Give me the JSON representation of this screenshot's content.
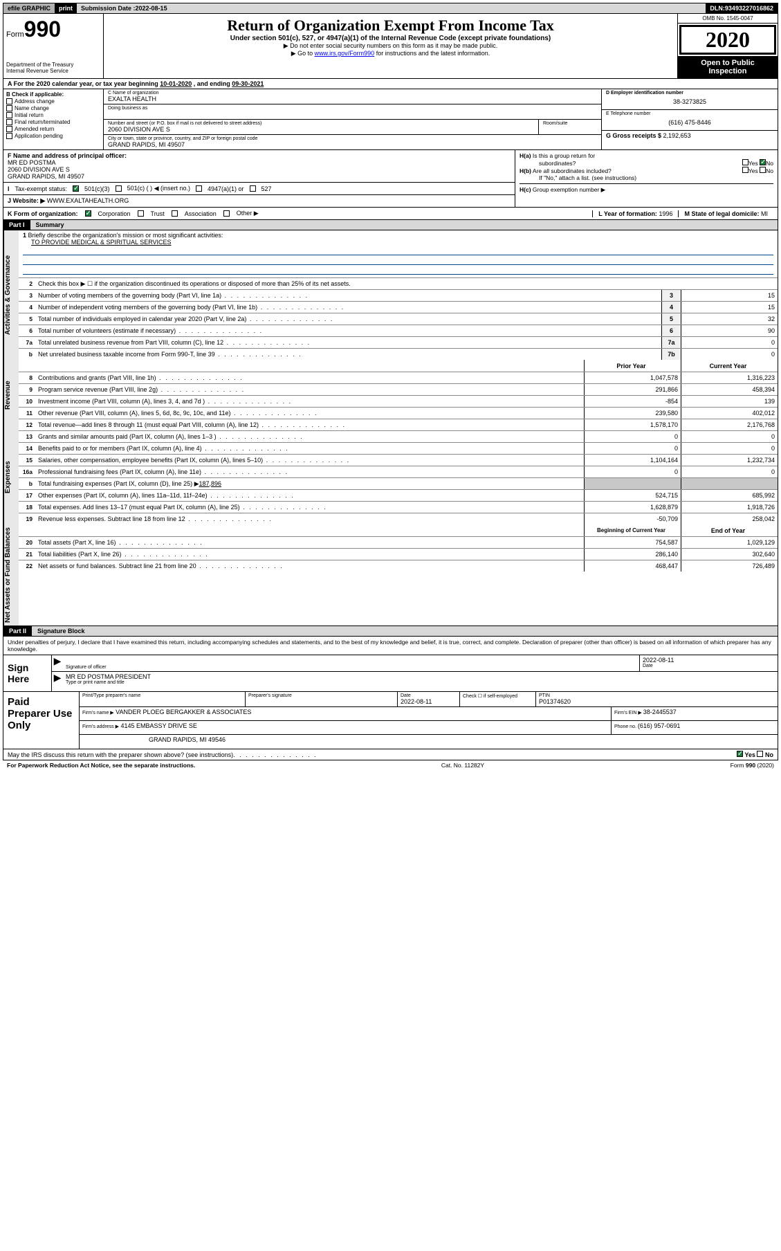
{
  "topbar": {
    "efile": "efile GRAPHIC",
    "print": "print",
    "submission_label": "Submission Date : ",
    "submission_date": "2022-08-15",
    "dln_label": "DLN: ",
    "dln": "93493227016862"
  },
  "header": {
    "form_label": "Form",
    "form_no": "990",
    "dept1": "Department of the Treasury",
    "dept2": "Internal Revenue Service",
    "title": "Return of Organization Exempt From Income Tax",
    "sub": "Under section 501(c), 527, or 4947(a)(1) of the Internal Revenue Code (except private foundations)",
    "note1": "▶ Do not enter social security numbers on this form as it may be made public.",
    "note2_pre": "▶ Go to ",
    "note2_link": "www.irs.gov/Form990",
    "note2_post": " for instructions and the latest information.",
    "omb": "OMB No. 1545-0047",
    "year": "2020",
    "open1": "Open to Public",
    "open2": "Inspection"
  },
  "rowA": {
    "text_pre": "A For the 2020 calendar year, or tax year beginning ",
    "begin": "10-01-2020",
    "mid": "   , and ending ",
    "end": "09-30-2021"
  },
  "colB": {
    "label": "B Check if applicable:",
    "items": [
      "Address change",
      "Name change",
      "Initial return",
      "Final return/terminated",
      "Amended return",
      "Application pending"
    ]
  },
  "colC": {
    "name_lbl": "C Name of organization",
    "name": "EXALTA HEALTH",
    "dba_lbl": "Doing business as",
    "street_lbl": "Number and street (or P.O. box if mail is not delivered to street address)",
    "street": "2060 DIVISION AVE S",
    "room_lbl": "Room/suite",
    "city_lbl": "City or town, state or province, country, and ZIP or foreign postal code",
    "city": "GRAND RAPIDS, MI  49507"
  },
  "colDE": {
    "d_lbl": "D Employer identification number",
    "ein": "38-3273825",
    "e_lbl": "E Telephone number",
    "phone": "(616) 475-8446",
    "g_lbl": "G Gross receipts $ ",
    "gross": "2,192,653"
  },
  "blockF": {
    "f_lbl": "F Name and address of principal officer:",
    "f_name": "MR ED POSTMA",
    "f_addr1": "2060 DIVISION AVE S",
    "f_addr2": "GRAND RAPIDS, MI  49507",
    "i_lbl": "Tax-exempt status:",
    "i_501c3": "501(c)(3)",
    "i_501c": "501(c) (   ) ◀ (insert no.)",
    "i_4947": "4947(a)(1) or",
    "i_527": "527",
    "j_lbl": "Website: ▶",
    "website": "WWW.EXALTAHEALTH.ORG"
  },
  "blockH": {
    "ha_lbl": "H(a)",
    "ha_q1": "Is this a group return for",
    "ha_q2": "subordinates?",
    "hb_lbl": "H(b)",
    "hb_q": "Are all subordinates included?",
    "hb_note": "If \"No,\" attach a list. (see instructions)",
    "hc_lbl": "H(c)",
    "hc_q": "Group exemption number ▶",
    "yes": "Yes",
    "no": "No"
  },
  "rowK": {
    "k_lbl": "K Form of organization:",
    "corp": "Corporation",
    "trust": "Trust",
    "assoc": "Association",
    "other": "Other ▶",
    "l_lbl": "L Year of formation: ",
    "l_val": "1996",
    "m_lbl": "M State of legal domicile: ",
    "m_val": "MI"
  },
  "part1": {
    "part": "Part I",
    "title": "Summary",
    "vtab_ag": "Activities & Governance",
    "vtab_rev": "Revenue",
    "vtab_exp": "Expenses",
    "vtab_net": "Net Assets or Fund Balances",
    "l1_lbl": "Briefly describe the organization's mission or most significant activities:",
    "l1_val": "TO PROVIDE MEDICAL & SPIRITUAL SERVICES",
    "l2": "Check this box ▶ ☐  if the organization discontinued its operations or disposed of more than 25% of its net assets.",
    "prior_hdr": "Prior Year",
    "current_hdr": "Current Year",
    "boy_hdr": "Beginning of Current Year",
    "eoy_hdr": "End of Year",
    "lines_ag": [
      {
        "n": "3",
        "t": "Number of voting members of the governing body (Part VI, line 1a)",
        "box": "3",
        "v": "15"
      },
      {
        "n": "4",
        "t": "Number of independent voting members of the governing body (Part VI, line 1b)",
        "box": "4",
        "v": "15"
      },
      {
        "n": "5",
        "t": "Total number of individuals employed in calendar year 2020 (Part V, line 2a)",
        "box": "5",
        "v": "32"
      },
      {
        "n": "6",
        "t": "Total number of volunteers (estimate if necessary)",
        "box": "6",
        "v": "90"
      },
      {
        "n": "7a",
        "t": "Total unrelated business revenue from Part VIII, column (C), line 12",
        "box": "7a",
        "v": "0"
      },
      {
        "n": "b",
        "t": "Net unrelated business taxable income from Form 990-T, line 39",
        "box": "7b",
        "v": "0"
      }
    ],
    "lines_rev": [
      {
        "n": "8",
        "t": "Contributions and grants (Part VIII, line 1h)",
        "p": "1,047,578",
        "c": "1,316,223"
      },
      {
        "n": "9",
        "t": "Program service revenue (Part VIII, line 2g)",
        "p": "291,866",
        "c": "458,394"
      },
      {
        "n": "10",
        "t": "Investment income (Part VIII, column (A), lines 3, 4, and 7d )",
        "p": "-854",
        "c": "139"
      },
      {
        "n": "11",
        "t": "Other revenue (Part VIII, column (A), lines 5, 6d, 8c, 9c, 10c, and 11e)",
        "p": "239,580",
        "c": "402,012"
      },
      {
        "n": "12",
        "t": "Total revenue—add lines 8 through 11 (must equal Part VIII, column (A), line 12)",
        "p": "1,578,170",
        "c": "2,176,768"
      }
    ],
    "lines_exp": [
      {
        "n": "13",
        "t": "Grants and similar amounts paid (Part IX, column (A), lines 1–3 )",
        "p": "0",
        "c": "0"
      },
      {
        "n": "14",
        "t": "Benefits paid to or for members (Part IX, column (A), line 4)",
        "p": "0",
        "c": "0"
      },
      {
        "n": "15",
        "t": "Salaries, other compensation, employee benefits (Part IX, column (A), lines 5–10)",
        "p": "1,104,164",
        "c": "1,232,734"
      },
      {
        "n": "16a",
        "t": "Professional fundraising fees (Part IX, column (A), line 11e)",
        "p": "0",
        "c": "0"
      }
    ],
    "line16b_pre": "Total fundraising expenses (Part IX, column (D), line 25) ▶",
    "line16b_val": "187,896",
    "lines_exp2": [
      {
        "n": "17",
        "t": "Other expenses (Part IX, column (A), lines 11a–11d, 11f–24e)",
        "p": "524,715",
        "c": "685,992"
      },
      {
        "n": "18",
        "t": "Total expenses. Add lines 13–17 (must equal Part IX, column (A), line 25)",
        "p": "1,628,879",
        "c": "1,918,726"
      },
      {
        "n": "19",
        "t": "Revenue less expenses. Subtract line 18 from line 12",
        "p": "-50,709",
        "c": "258,042"
      }
    ],
    "lines_net": [
      {
        "n": "20",
        "t": "Total assets (Part X, line 16)",
        "p": "754,587",
        "c": "1,029,129"
      },
      {
        "n": "21",
        "t": "Total liabilities (Part X, line 26)",
        "p": "286,140",
        "c": "302,640"
      },
      {
        "n": "22",
        "t": "Net assets or fund balances. Subtract line 21 from line 20",
        "p": "468,447",
        "c": "726,489"
      }
    ]
  },
  "part2": {
    "part": "Part II",
    "title": "Signature Block",
    "intro": "Under penalties of perjury, I declare that I have examined this return, including accompanying schedules and statements, and to the best of my knowledge and belief, it is true, correct, and complete. Declaration of preparer (other than officer) is based on all information of which preparer has any knowledge.",
    "sign_here": "Sign Here",
    "sig_lbl": "Signature of officer",
    "sig_date": "2022-08-11",
    "date_lbl": "Date",
    "officer": "MR ED POSTMA  PRESIDENT",
    "officer_lbl": "Type or print name and title",
    "prep_here": "Paid Preparer Use Only",
    "p_name_lbl": "Print/Type preparer's name",
    "p_sig_lbl": "Preparer's signature",
    "p_date_lbl": "Date",
    "p_date": "2022-08-11",
    "p_check_lbl": "Check ☐ if self-employed",
    "ptin_lbl": "PTIN",
    "ptin": "P01374620",
    "firm_name_lbl": "Firm's name    ▶",
    "firm_name": "VANDER PLOEG BERGAKKER & ASSOCIATES",
    "firm_ein_lbl": "Firm's EIN ▶ ",
    "firm_ein": "38-2445537",
    "firm_addr_lbl": "Firm's address ▶",
    "firm_addr1": "4145 EMBASSY DRIVE SE",
    "firm_addr2": "GRAND RAPIDS, MI  49546",
    "firm_phone_lbl": "Phone no. ",
    "firm_phone": "(616) 957-0691",
    "discuss": "May the IRS discuss this return with the preparer shown above? (see instructions)",
    "paperwork": "For Paperwork Reduction Act Notice, see the separate instructions.",
    "catno": "Cat. No. 11282Y",
    "formfoot": "Form 990 (2020)"
  }
}
